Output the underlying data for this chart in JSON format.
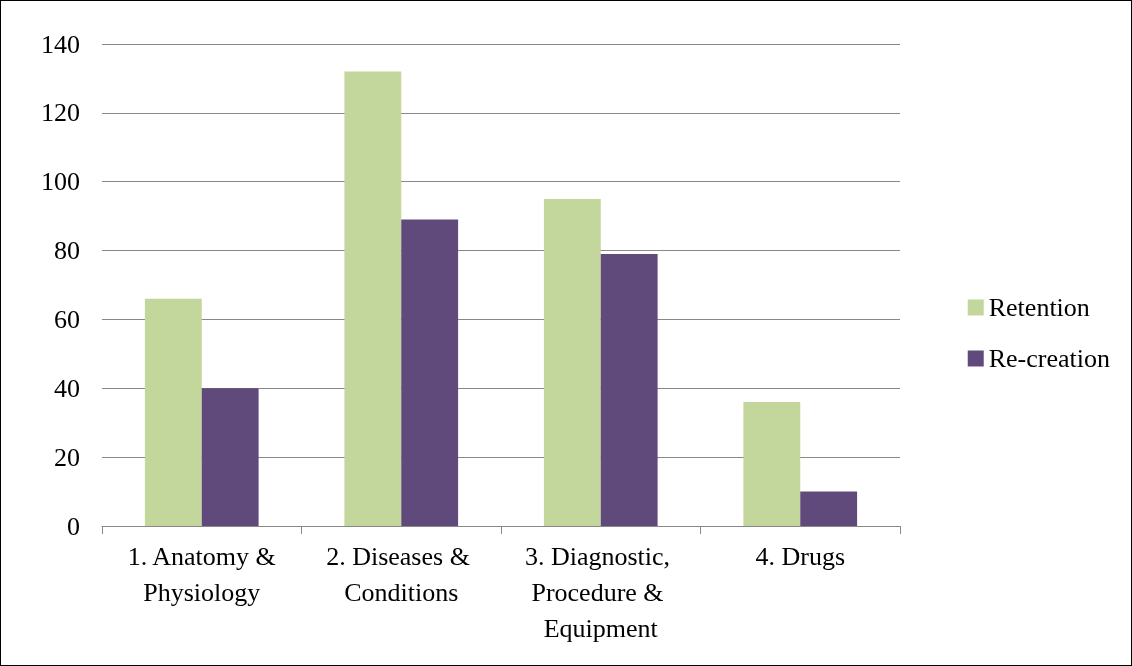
{
  "chart_data": {
    "type": "bar",
    "categories": [
      "1. Anatomy &Physiology",
      "2. Diseases & Conditions",
      "3. Diagnostic, Procedure & Equipment",
      "4. Drugs"
    ],
    "series": [
      {
        "name": "Retention",
        "color": "#c3d69b",
        "values": [
          66,
          132,
          95,
          36
        ]
      },
      {
        "name": "Re-creation",
        "color": "#604a7b",
        "values": [
          40,
          89,
          79,
          10
        ]
      }
    ],
    "ylim": [
      0,
      140
    ],
    "yticks": [
      0,
      20,
      40,
      60,
      80,
      100,
      120,
      140
    ],
    "grid": "y",
    "legend": "right"
  }
}
